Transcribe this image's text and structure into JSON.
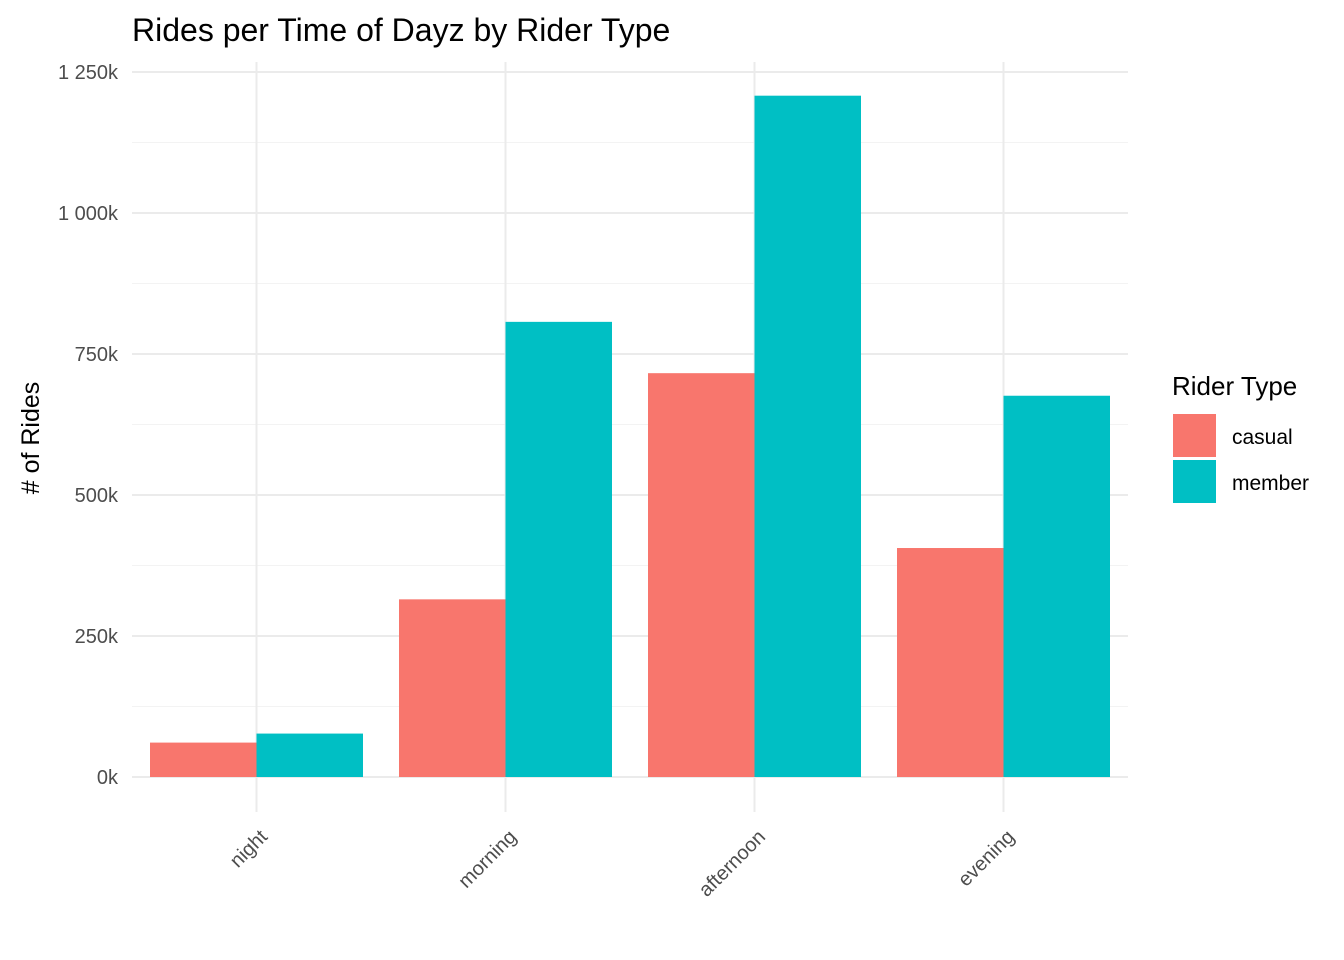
{
  "chart_data": {
    "type": "bar",
    "title": "Rides per Time of Dayz by Rider Type",
    "xlabel": "",
    "ylabel": "# of Rides",
    "categories": [
      "night",
      "morning",
      "afternoon",
      "evening"
    ],
    "series": [
      {
        "name": "casual",
        "color": "#F8766D",
        "values": [
          61000,
          315000,
          716000,
          406000
        ]
      },
      {
        "name": "member",
        "color": "#00BFC4",
        "values": [
          77000,
          807000,
          1208000,
          676000
        ]
      }
    ],
    "ylim": [
      0,
      1250000
    ],
    "yticks": [
      0,
      250000,
      500000,
      750000,
      1000000,
      1250000
    ],
    "ytick_labels": [
      "0k",
      "250k",
      "500k",
      "750k",
      "1 000k",
      "1 250k"
    ],
    "grid": true,
    "legend": {
      "title": "Rider Type",
      "position": "right"
    }
  }
}
